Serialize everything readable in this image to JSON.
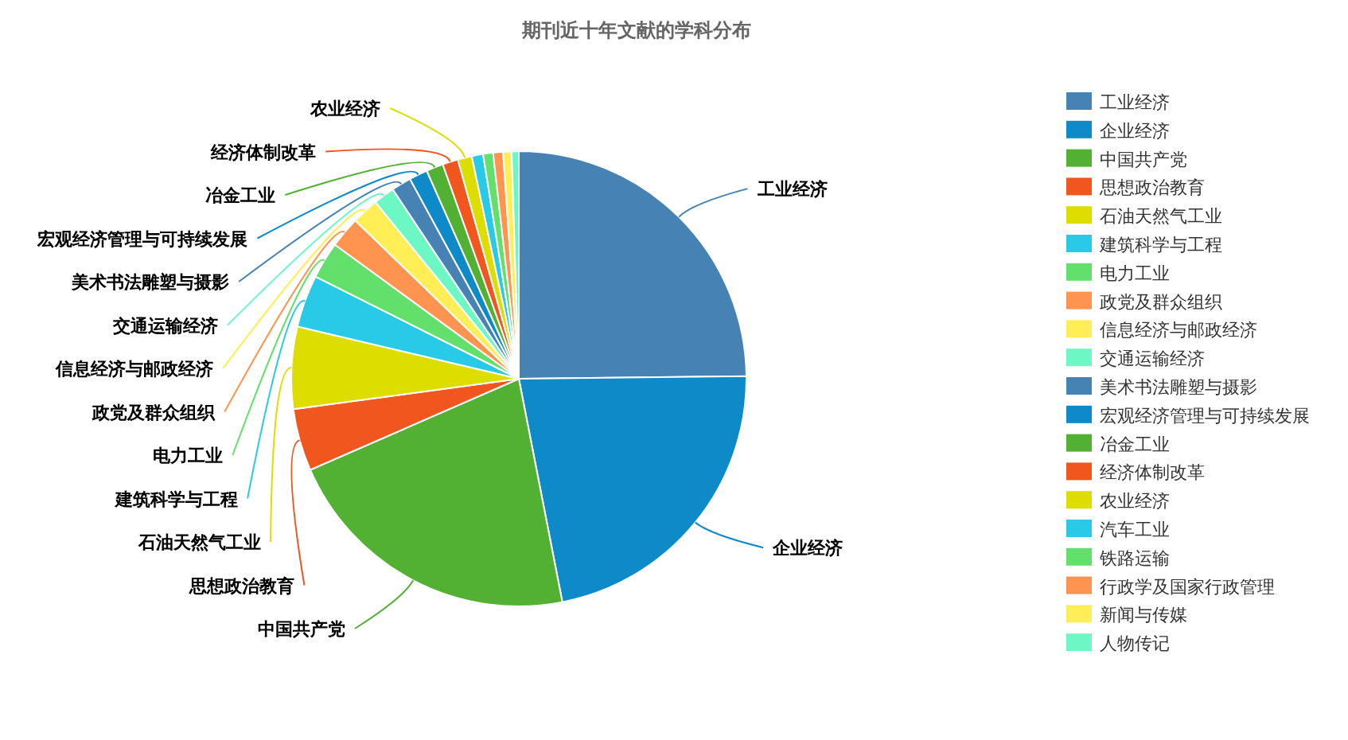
{
  "chart_data": {
    "type": "pie",
    "title": "期刊近十年文献的学科分布",
    "legend": "right",
    "categories": [
      "工业经济",
      "企业经济",
      "中国共产党",
      "思想政治教育",
      "石油天然气工业",
      "建筑科学与工程",
      "电力工业",
      "政党及群众组织",
      "信息经济与邮政经济",
      "交通运输经济",
      "美术书法雕塑与摄影",
      "宏观经济管理与可持续发展",
      "冶金工业",
      "经济体制改革",
      "农业经济",
      "汽车工业",
      "铁路运输",
      "行政学及国家行政管理",
      "新闻与传媒",
      "人物传记"
    ],
    "values": [
      24.7,
      22,
      21.4,
      4.4,
      5.8,
      3.7,
      2.6,
      2.2,
      1.9,
      1.5,
      1.4,
      1.3,
      1.2,
      1.1,
      1.0,
      0.8,
      0.7,
      0.7,
      0.6,
      0.5
    ],
    "colors": [
      "#4682b4",
      "#0e8ac8",
      "#52b032",
      "#f0561d",
      "#dddd00",
      "#29c9e8",
      "#63e06b",
      "#ff9450",
      "#ffee55",
      "#6cf7c4",
      "#4682b4",
      "#0e8ac8",
      "#52b032",
      "#f0561d",
      "#dddd00",
      "#29c9e8",
      "#63e06b",
      "#ff9450",
      "#ffee55",
      "#6cf7c4"
    ]
  }
}
